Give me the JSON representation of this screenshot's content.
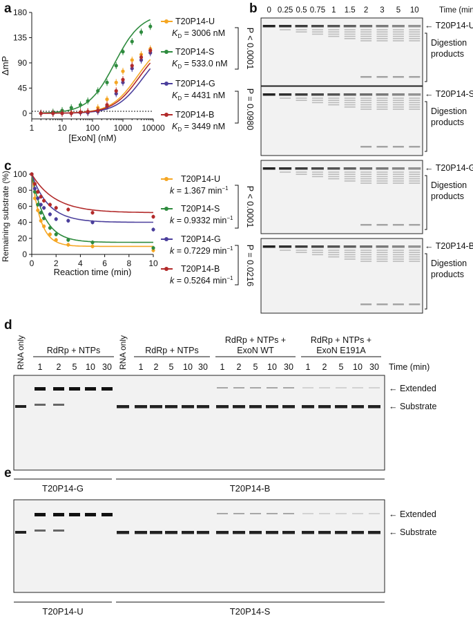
{
  "panels": {
    "a": "a",
    "b": "b",
    "c": "c",
    "d": "d",
    "e": "e"
  },
  "chart_data": [
    {
      "type": "scatter",
      "panel": "a",
      "xscale": "log",
      "xlabel": "[ExoN] (nM)",
      "ylabel": "ΔmP",
      "xticks": [
        "1",
        "10",
        "100",
        "1000",
        "10000"
      ],
      "yticks": [
        "0",
        "45",
        "90",
        "135",
        "180"
      ],
      "ylim": [
        -10,
        180
      ],
      "x": [
        2,
        5,
        10,
        20,
        40,
        70,
        150,
        300,
        600,
        1000,
        2000,
        4000,
        8000
      ],
      "series": [
        {
          "name": "T20P14-U",
          "color": "#f5a623",
          "kd": 3006,
          "kd_label": "3006 nM",
          "values": [
            0,
            0,
            1,
            1,
            2,
            3,
            10,
            25,
            55,
            75,
            95,
            105,
            115
          ]
        },
        {
          "name": "T20P14-S",
          "color": "#2e8b3e",
          "kd": 533.0,
          "kd_label": "533.0 nM",
          "values": [
            0,
            2,
            5,
            10,
            15,
            22,
            40,
            55,
            85,
            110,
            128,
            145,
            155
          ]
        },
        {
          "name": "T20P14-G",
          "color": "#4b3f9c",
          "kd": 4431,
          "kd_label": "4431 nM",
          "values": [
            0,
            0,
            0,
            0,
            1,
            1,
            3,
            12,
            35,
            55,
            80,
            95,
            108
          ]
        },
        {
          "name": "T20P14-B",
          "color": "#b22a2a",
          "kd": 3449,
          "kd_label": "3449 nM",
          "values": [
            0,
            0,
            0,
            0,
            2,
            3,
            5,
            15,
            40,
            60,
            85,
            100,
            112
          ]
        }
      ],
      "kd_prefix": "K",
      "kd_sub": "D",
      "stats": [
        {
          "text": "P < 0.0001"
        },
        {
          "text": "P = 0.0980"
        }
      ]
    },
    {
      "type": "scatter",
      "panel": "c",
      "xlabel": "Reaction time (min)",
      "ylabel": "Remaining substrate (%)",
      "xticks": [
        "0",
        "2",
        "4",
        "6",
        "8",
        "10"
      ],
      "yticks": [
        "0",
        "20",
        "40",
        "60",
        "80",
        "100"
      ],
      "ylim": [
        0,
        100
      ],
      "x": [
        0,
        0.25,
        0.5,
        0.75,
        1,
        1.5,
        2,
        3,
        5,
        10
      ],
      "series": [
        {
          "name": "T20P14-U",
          "color": "#f5a623",
          "k_label": "1.367",
          "values": [
            100,
            70,
            55,
            42,
            35,
            25,
            18,
            12,
            10,
            5
          ]
        },
        {
          "name": "T20P14-S",
          "color": "#2e8b3e",
          "k_label": "0.9332",
          "values": [
            100,
            78,
            62,
            52,
            45,
            33,
            25,
            18,
            15,
            8
          ]
        },
        {
          "name": "T20P14-G",
          "color": "#4b3f9c",
          "k_label": "0.7229",
          "values": [
            100,
            82,
            70,
            62,
            58,
            50,
            44,
            42,
            40,
            31
          ]
        },
        {
          "name": "T20P14-B",
          "color": "#b22a2a",
          "k_label": "0.5264",
          "values": [
            100,
            88,
            78,
            72,
            67,
            62,
            58,
            56,
            52,
            47
          ]
        }
      ],
      "k_prefix": "k",
      "k_unit": "min",
      "stats": [
        {
          "text": "P < 0.0001"
        },
        {
          "text": "P = 0.0216"
        }
      ]
    }
  ],
  "panel_b": {
    "time_header": "Time (min)",
    "times": [
      "0",
      "0.25",
      "0.5",
      "0.75",
      "1",
      "1.5",
      "2",
      "3",
      "5",
      "10"
    ],
    "gels": [
      {
        "substrate": "T20P14-U",
        "products": "Digestion products"
      },
      {
        "substrate": "T20P14-S",
        "products": "Digestion products"
      },
      {
        "substrate": "T20P14-G",
        "products": "Digestion products"
      },
      {
        "substrate": "T20P14-B",
        "products": "Digestion products"
      }
    ]
  },
  "panel_d": {
    "rna_only": "RNA only",
    "groups": [
      {
        "label": "RdRp + NTPs",
        "times": [
          "1",
          "2",
          "5",
          "10",
          "30"
        ]
      },
      {
        "label": "RdRp + NTPs",
        "times": [
          "1",
          "2",
          "5",
          "10",
          "30"
        ]
      },
      {
        "label": "RdRp + NTPs +",
        "label2": "ExoN WT",
        "times": [
          "1",
          "2",
          "5",
          "10",
          "30"
        ]
      },
      {
        "label": "RdRp + NTPs +",
        "label2": "ExoN E191A",
        "times": [
          "1",
          "2",
          "5",
          "10",
          "30"
        ]
      }
    ],
    "time_label": "Time (min)",
    "extended": "Extended",
    "substrate": "Substrate",
    "bottom_left": "T20P14-G",
    "bottom_right": "T20P14-B"
  },
  "panel_e": {
    "extended": "Extended",
    "substrate": "Substrate",
    "bottom_left": "T20P14-U",
    "bottom_right": "T20P14-S"
  }
}
